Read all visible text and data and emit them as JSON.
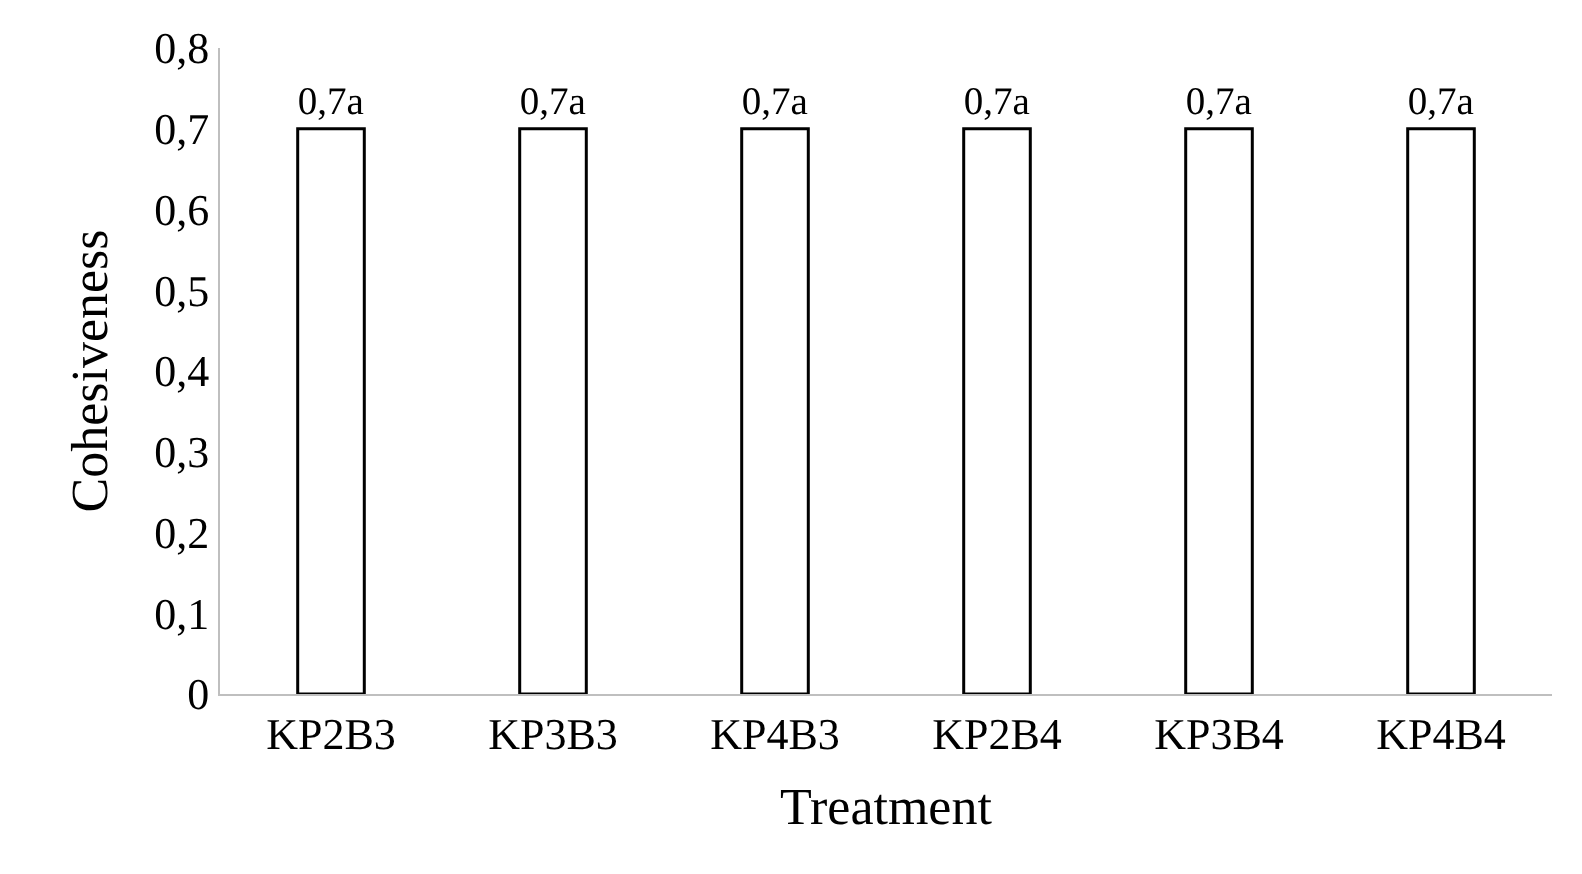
{
  "chart_data": {
    "type": "bar",
    "xlabel": "Treatment",
    "ylabel": "Cohesiveness",
    "categories": [
      "KP2B3",
      "KP3B3",
      "KP4B3",
      "KP2B4",
      "KP3B4",
      "KP4B4"
    ],
    "values": [
      0.7,
      0.7,
      0.7,
      0.7,
      0.7,
      0.7
    ],
    "colors": [
      "#ffffff",
      "#ffffff",
      "#ffffff",
      "#ffffff",
      "#ffffff",
      "#ffffff"
    ],
    "value_labels": [
      "0,7a",
      "0,7a",
      "0,7a",
      "0,7a",
      "0,7a",
      "0,7a"
    ],
    "ylim": [
      0,
      0.8
    ],
    "yticks": [
      0,
      {
        "value": 0.1,
        "label": "0,1"
      },
      {
        "value": 0.2,
        "label": "0,2"
      },
      {
        "value": 0.3,
        "label": "0,3"
      },
      {
        "value": 0.4,
        "label": "0,4"
      },
      {
        "value": 0.5,
        "label": "0,5"
      },
      {
        "value": 0.6,
        "label": "0,6"
      },
      {
        "value": 0.7,
        "label": "0,7"
      },
      {
        "value": 0.8,
        "label": "0,8"
      }
    ],
    "legend": false
  }
}
